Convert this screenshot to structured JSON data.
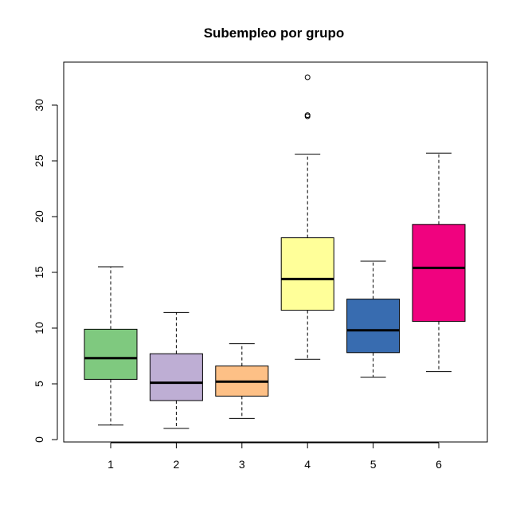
{
  "chart_data": {
    "type": "boxplot",
    "title": "Subempleo por grupo",
    "xlabel": "",
    "ylabel": "",
    "ylim": [
      0,
      33
    ],
    "yticks": [
      0,
      5,
      10,
      15,
      20,
      25,
      30
    ],
    "grid": false,
    "legend": "none",
    "categories": [
      "1",
      "2",
      "3",
      "4",
      "5",
      "6"
    ],
    "boxes": [
      {
        "category": "1",
        "whisker_low": 1.3,
        "q1": 5.4,
        "median": 7.3,
        "q3": 9.9,
        "whisker_high": 15.5,
        "outliers": [],
        "color": "#7FC97F"
      },
      {
        "category": "2",
        "whisker_low": 1.0,
        "q1": 3.5,
        "median": 5.1,
        "q3": 7.7,
        "whisker_high": 11.4,
        "outliers": [],
        "color": "#BEAED4"
      },
      {
        "category": "3",
        "whisker_low": 1.9,
        "q1": 3.9,
        "median": 5.2,
        "q3": 6.6,
        "whisker_high": 8.6,
        "outliers": [],
        "color": "#FDC086"
      },
      {
        "category": "4",
        "whisker_low": 7.2,
        "q1": 11.6,
        "median": 14.4,
        "q3": 18.1,
        "whisker_high": 25.6,
        "outliers": [
          29.0,
          29.1,
          32.5
        ],
        "color": "#FFFF99"
      },
      {
        "category": "5",
        "whisker_low": 5.6,
        "q1": 7.8,
        "median": 9.8,
        "q3": 12.6,
        "whisker_high": 16.0,
        "outliers": [],
        "color": "#386CB0"
      },
      {
        "category": "6",
        "whisker_low": 6.1,
        "q1": 10.6,
        "median": 15.4,
        "q3": 19.3,
        "whisker_high": 25.7,
        "outliers": [],
        "color": "#F0027F"
      }
    ]
  }
}
